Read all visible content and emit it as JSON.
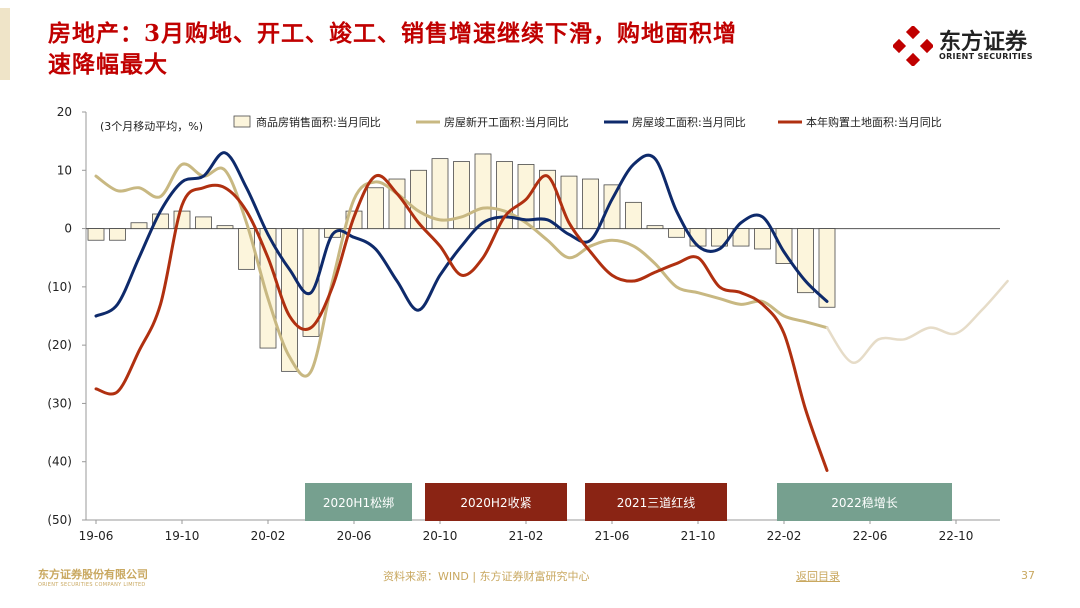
{
  "header": {
    "title_line1": "房地产：3月购地、开工、竣工、销售增速继续下滑，购地面积增",
    "title_line2": "速降幅最大"
  },
  "brand": {
    "name_cn": "东方证券",
    "name_en": "ORIENT SECURITIES",
    "primary_color": "#c00000"
  },
  "chart_data": {
    "type": "bar+line",
    "unit_note": "(3个月移动平均，%)",
    "yticks": [
      "20",
      "10",
      "0",
      "(10)",
      "(20)",
      "(30)",
      "(40)",
      "(50)"
    ],
    "ylim": [
      -50,
      20
    ],
    "xticks": [
      "19-06",
      "19-10",
      "20-02",
      "20-06",
      "20-10",
      "21-02",
      "21-06",
      "21-10",
      "22-02",
      "22-06",
      "22-10"
    ],
    "x_start": "2019-06",
    "legend": [
      "商品房销售面积:当月同比",
      "房屋新开工面积:当月同比",
      "房屋竣工面积:当月同比",
      "本年购置土地面积:当月同比"
    ],
    "series": [
      {
        "name": "商品房销售面积:当月同比",
        "kind": "bar",
        "color": "#fcf5dc",
        "values": [
          -2,
          -2,
          1,
          2.5,
          3,
          2,
          0.5,
          -7,
          -20.5,
          -24.5,
          -18.5,
          -1.5,
          3,
          7,
          8.5,
          10,
          12,
          11.5,
          12.8,
          11.5,
          11,
          10,
          9,
          8.5,
          7.5,
          4.5,
          0.5,
          -1.5,
          -3,
          -3,
          -3,
          -3.5,
          -6,
          -11,
          -13.5
        ]
      },
      {
        "name": "房屋新开工面积:当月同比",
        "kind": "line",
        "color": "#c8b882",
        "values": [
          9,
          6.5,
          7,
          5.5,
          11,
          9,
          10,
          1,
          -12,
          -22,
          -24.5,
          -9,
          5,
          8,
          6,
          3,
          1.5,
          2,
          3.5,
          3,
          1,
          -2,
          -5,
          -3,
          -2,
          -3,
          -6,
          -10,
          -11,
          -12,
          -13,
          -12.5,
          -15,
          -16,
          -17
        ]
      },
      {
        "name": "房屋竣工面积:当月同比",
        "kind": "line",
        "color": "#0e2a6b",
        "values": [
          -15,
          -13,
          -5,
          3,
          8,
          9,
          13,
          7,
          -1,
          -7,
          -11,
          -1,
          -1.5,
          -3.5,
          -9,
          -14,
          -8,
          -3,
          1,
          2,
          1.5,
          1.5,
          -1,
          -2,
          5,
          11,
          12,
          3,
          -3,
          -3.5,
          1,
          2,
          -4,
          -9,
          -12.5
        ]
      },
      {
        "name": "本年购置土地面积:当月同比",
        "kind": "line",
        "color": "#b03010",
        "values": [
          -27.5,
          -28,
          -21,
          -13,
          4,
          7,
          7,
          3,
          -5,
          -15,
          -17,
          -10,
          2,
          9,
          6,
          1,
          -3,
          -8,
          -5,
          2,
          5,
          9,
          1,
          -4,
          -8,
          -9,
          -7.5,
          -6,
          -5,
          -10,
          -11,
          -13,
          -18,
          -31,
          -41.5
        ]
      },
      {
        "name": "projection",
        "kind": "line",
        "color": "#e6dcc8",
        "values": [
          -17,
          -23,
          -19,
          -19,
          -17,
          -18,
          -14,
          -9
        ]
      }
    ],
    "policy_bands": [
      {
        "label": "2020H1松绑",
        "color": "#76a08f"
      },
      {
        "label": "2020H2收紧",
        "color": "#8a2414"
      },
      {
        "label": "2021三道红线",
        "color": "#8a2414"
      },
      {
        "label": "2022稳增长",
        "color": "#76a08f"
      }
    ]
  },
  "footer": {
    "company_cn": "东方证券股份有限公司",
    "company_en": "ORIENT SECURITIES COMPANY LIMITED",
    "source": "资料来源：WIND | 东方证券财富研究中心",
    "back_link": "返回目录",
    "page_number": "37"
  }
}
